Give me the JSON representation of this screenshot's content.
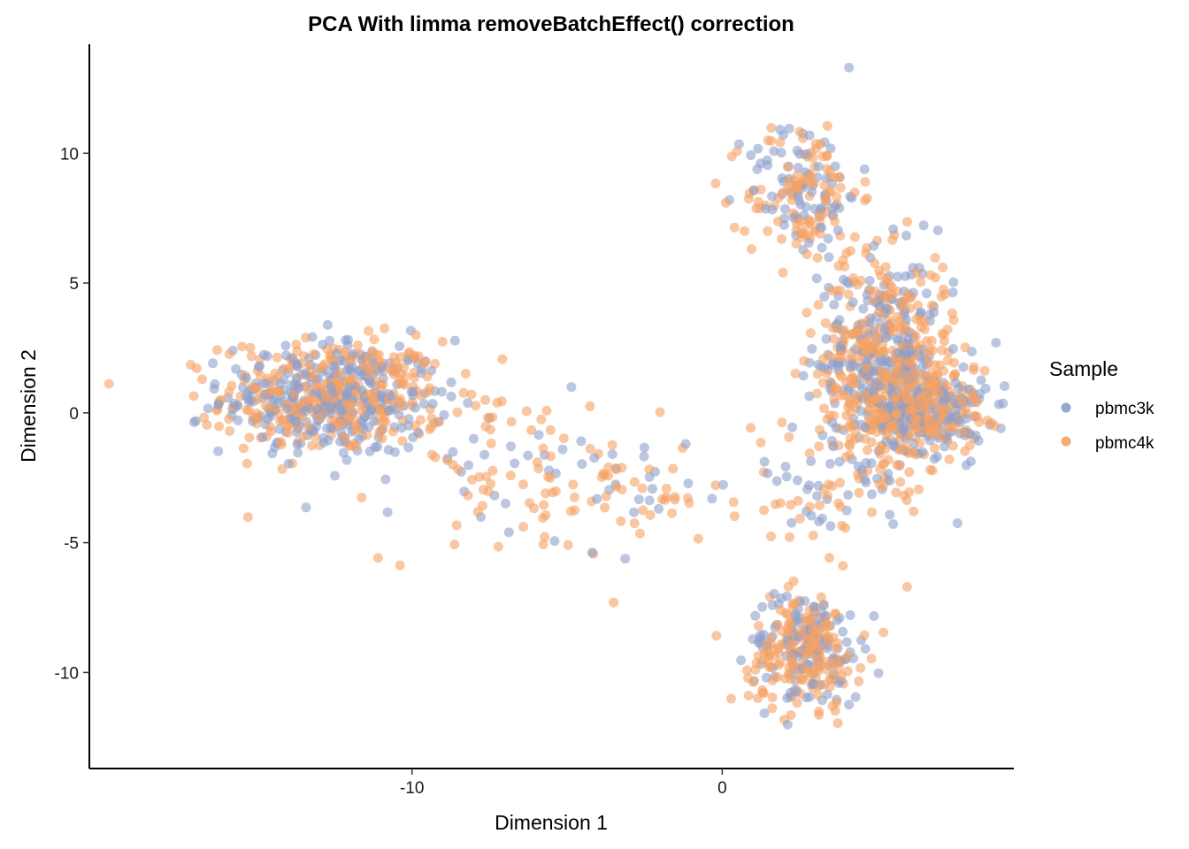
{
  "chart_data": {
    "type": "scatter",
    "title": "PCA With limma removeBatchEffect() correction",
    "xlabel": "Dimension 1",
    "ylabel": "Dimension 2",
    "xlim": [
      -20.4,
      9.4
    ],
    "ylim": [
      -13.7,
      14.2
    ],
    "x_ticks": [
      -10,
      0
    ],
    "y_ticks": [
      10,
      5,
      0,
      -5,
      -10
    ],
    "grid": false,
    "legend": {
      "title": "Sample",
      "position": "right",
      "entries": [
        "pbmc3k",
        "pbmc4k"
      ]
    },
    "point_opacity": 0.6,
    "clusters": [
      {
        "name": "left",
        "center": [
          -12.5,
          0.6
        ],
        "spread": [
          1.8,
          1.1
        ],
        "n": [
          330,
          340
        ]
      },
      {
        "name": "bridge",
        "center": [
          -6.5,
          -2.5
        ],
        "spread": [
          2.2,
          1.6
        ],
        "n": [
          30,
          70
        ]
      },
      {
        "name": "middle",
        "center": [
          -2.3,
          -3.4
        ],
        "spread": [
          1.2,
          0.9
        ],
        "n": [
          15,
          30
        ]
      },
      {
        "name": "right-top",
        "center": [
          2.6,
          8.5
        ],
        "spread": [
          0.9,
          1.4
        ],
        "n": [
          80,
          110
        ]
      },
      {
        "name": "right-main",
        "center": [
          5.3,
          1.8
        ],
        "spread": [
          1.1,
          2.1
        ],
        "n": [
          300,
          380
        ]
      },
      {
        "name": "right-tail",
        "center": [
          6.7,
          0.1
        ],
        "spread": [
          0.9,
          0.8
        ],
        "n": [
          140,
          170
        ]
      },
      {
        "name": "bottom",
        "center": [
          2.7,
          -9.1
        ],
        "spread": [
          0.9,
          1.1
        ],
        "n": [
          130,
          190
        ]
      },
      {
        "name": "scatter-right",
        "center": [
          2.9,
          -3.0
        ],
        "spread": [
          1.3,
          1.6
        ],
        "n": [
          25,
          35
        ]
      }
    ],
    "series": [
      {
        "name": "pbmc3k",
        "color": "#8DA0CB"
      },
      {
        "name": "pbmc4k",
        "color": "#F5A264"
      }
    ]
  }
}
